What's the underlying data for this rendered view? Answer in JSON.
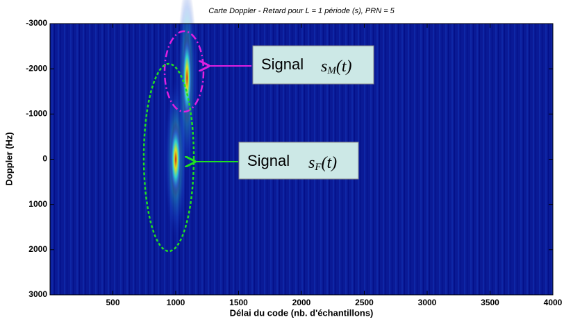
{
  "chart_data": {
    "type": "heatmap",
    "title": "Carte Doppler - Retard pour L = 1 période (s), PRN = 5",
    "x_label": "Délai du code (nb. d'échantillons)",
    "y_label": "Doppler (Hz)",
    "xlim": [
      0,
      4000
    ],
    "xticks": [
      500,
      1000,
      1500,
      2000,
      2500,
      3000,
      3500,
      4000
    ],
    "ylim": [
      -3000,
      3000
    ],
    "yticks": [
      -3000,
      -2000,
      -1000,
      0,
      1000,
      2000,
      3000
    ],
    "y_direction": "reverse",
    "x": [
      1000,
      1090
    ],
    "y": [
      0,
      -1800
    ],
    "annotations": [
      {
        "label": "Signal",
        "symbol": "s",
        "subscript": "M",
        "arg": "(t)",
        "color": "#e020e0"
      },
      {
        "label": "Signal",
        "symbol": "s",
        "subscript": "F",
        "arg": "(t)",
        "color": "#20e020"
      }
    ]
  }
}
